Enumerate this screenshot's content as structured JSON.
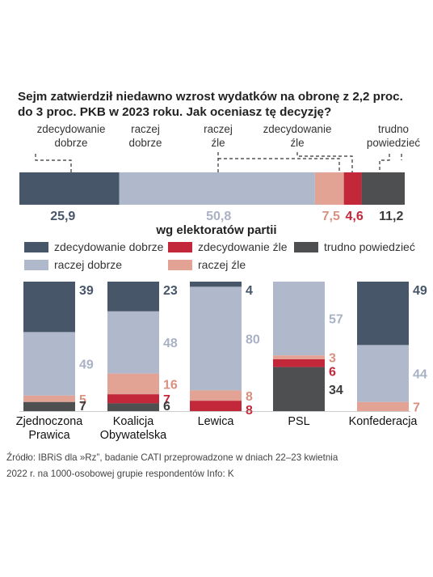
{
  "title_lines": [
    "Sejm zatwierdził niedawno wzrost wydatków na obronę z 2,2 proc.",
    "do 3 proc. PKB w 2023 roku. Jak oceniasz tę decyzję?"
  ],
  "colors": {
    "zdecydowanie_dobrze": "#48566a",
    "raczej_dobrze": "#b0b8cc",
    "raczej_zle": "#e2a294",
    "zdecydowanie_zle": "#c3283a",
    "trudno_powiedziec": "#4e4f51"
  },
  "top_categories": [
    {
      "line1": "zdecydowanie",
      "line2": "dobrze"
    },
    {
      "line1": "raczej",
      "line2": "dobrze"
    },
    {
      "line1": "raczej",
      "line2": "źle"
    },
    {
      "line1": "zdecydowanie",
      "line2": "źle"
    },
    {
      "line1": "trudno",
      "line2": "powiedzieć"
    }
  ],
  "section_title": "wg elektoratów partii",
  "legend": [
    "zdecydowanie dobrze",
    "zdecydowanie źle",
    "trudno powiedzieć",
    "raczej dobrze",
    "raczej źle"
  ],
  "footer_lines": [
    "Źródło: IBRiS dla »Rz”, badanie CATI przeprowadzone w dniach 22–23 kwietnia",
    "2022 r. na 1000-osobowej grupie respondentów Info: K"
  ],
  "chart_data": [
    {
      "type": "bar",
      "orientation": "horizontal-stacked",
      "series": [
        {
          "name": "zdecydowanie dobrze",
          "values": [
            25.9
          ],
          "label": "25,9"
        },
        {
          "name": "raczej dobrze",
          "values": [
            50.8
          ],
          "label": "50,8"
        },
        {
          "name": "raczej źle",
          "values": [
            7.5
          ],
          "label": "7,5"
        },
        {
          "name": "zdecydowanie źle",
          "values": [
            4.6
          ],
          "label": "4,6"
        },
        {
          "name": "trudno powiedzieć",
          "values": [
            11.2
          ],
          "label": "11,2"
        }
      ]
    },
    {
      "type": "bar",
      "orientation": "vertical-stacked",
      "categories": [
        {
          "line1": "Zjednoczona",
          "line2": "Prawica"
        },
        {
          "line1": "Koalicja",
          "line2": "Obywatelska"
        },
        {
          "line1": "Lewica",
          "line2": ""
        },
        {
          "line1": "PSL",
          "line2": ""
        },
        {
          "line1": "Konfederacja",
          "line2": ""
        }
      ],
      "series": [
        {
          "name": "zdecydowanie dobrze",
          "values": [
            39,
            23,
            4,
            0,
            49
          ]
        },
        {
          "name": "raczej dobrze",
          "values": [
            49,
            48,
            80,
            57,
            44
          ]
        },
        {
          "name": "raczej źle",
          "values": [
            5,
            16,
            8,
            3,
            7
          ]
        },
        {
          "name": "zdecydowanie źle",
          "values": [
            0,
            7,
            8,
            6,
            0
          ]
        },
        {
          "name": "trudno powiedzieć",
          "values": [
            7,
            6,
            0,
            34,
            0
          ]
        }
      ]
    }
  ]
}
